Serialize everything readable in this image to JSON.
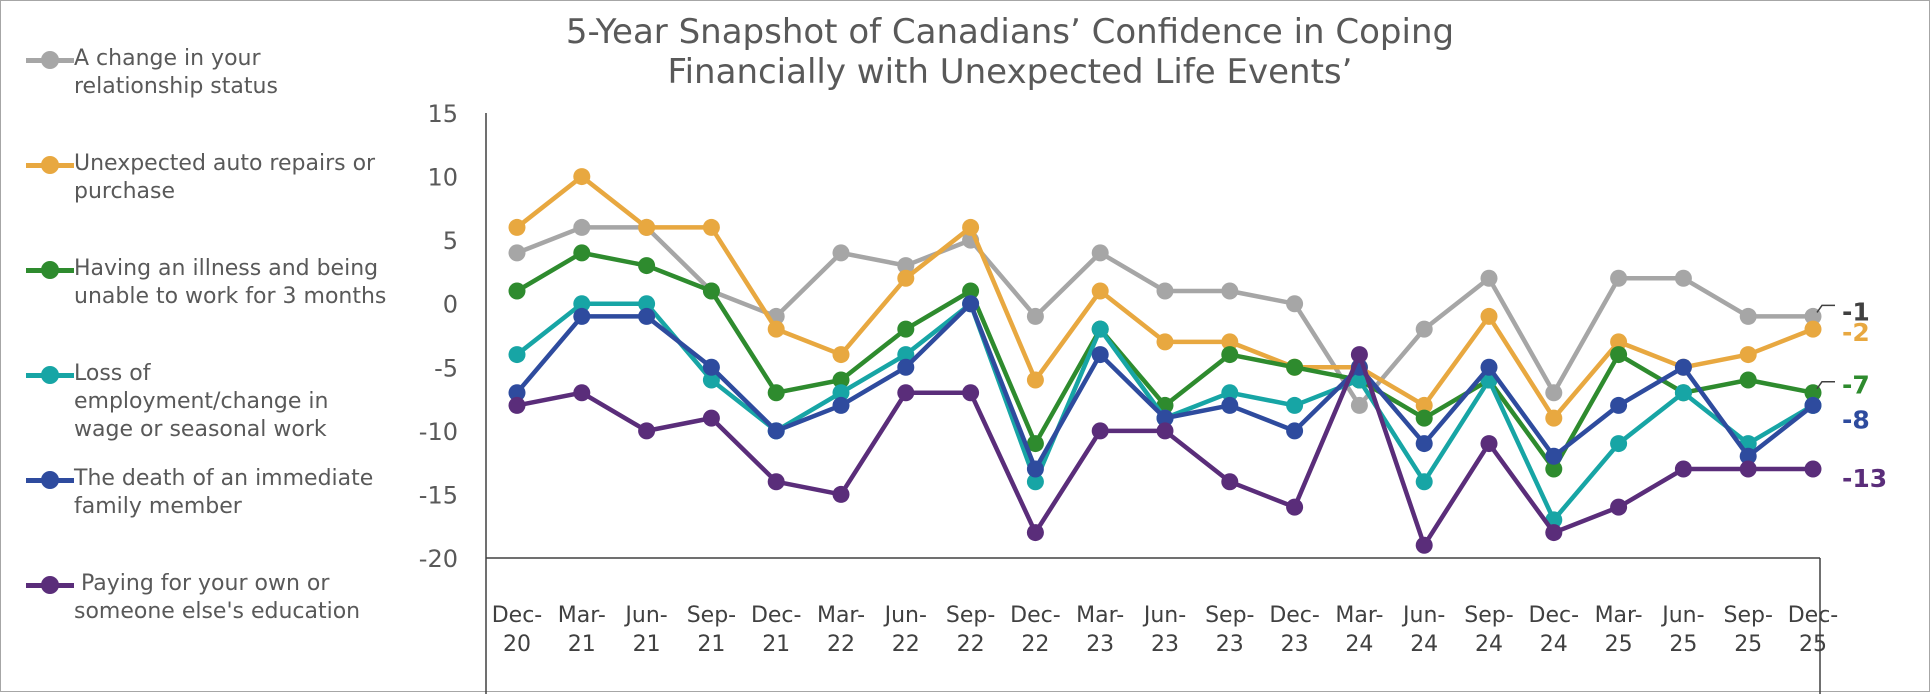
{
  "chart_data": {
    "type": "line",
    "title": "5-Year Snapshot of Canadians’ Confidence in Coping\nFinancially with Unexpected  Life Events’",
    "xlabel": "",
    "ylabel": "",
    "ylim": [
      -20,
      15
    ],
    "yticks": [
      "15",
      "10",
      "5",
      "0",
      "-5",
      "-10",
      "-15",
      "-20"
    ],
    "ytick_values": [
      15,
      10,
      5,
      0,
      -5,
      -10,
      -15,
      -20
    ],
    "grid": false,
    "legend_position": "left",
    "categories": [
      [
        "Dec-",
        "20"
      ],
      [
        "Mar-",
        "21"
      ],
      [
        "Jun-",
        "21"
      ],
      [
        "Sep-",
        "21"
      ],
      [
        "Dec-",
        "21"
      ],
      [
        "Mar-",
        "22"
      ],
      [
        "Jun-",
        "22"
      ],
      [
        "Sep-",
        "22"
      ],
      [
        "Dec-",
        "22"
      ],
      [
        "Mar-",
        "23"
      ],
      [
        "Jun-",
        "23"
      ],
      [
        "Sep-",
        "23"
      ],
      [
        "Dec-",
        "23"
      ],
      [
        "Mar-",
        "24"
      ],
      [
        "Jun-",
        "24"
      ],
      [
        "Sep-",
        "24"
      ],
      [
        "Dec-",
        "24"
      ],
      [
        "Mar-",
        "25"
      ],
      [
        "Jun-",
        "25"
      ],
      [
        "Sep-",
        "25"
      ],
      [
        "Dec-",
        "25"
      ]
    ],
    "series": [
      {
        "name": "A change in your relationship status",
        "legend_lines": [
          "A change in your",
          "relationship status"
        ],
        "color": "#a6a6a6",
        "values": [
          4,
          6,
          6,
          1,
          -1,
          4,
          3,
          5,
          -1,
          4,
          1,
          1,
          0,
          -8,
          -2,
          2,
          -7,
          2,
          2,
          -1,
          -1
        ],
        "end_label": "-1",
        "end_label_color": "#404040"
      },
      {
        "name": "Unexpected auto repairs or purchase",
        "legend_lines": [
          "Unexpected auto repairs or",
          "purchase"
        ],
        "color": "#e8a840",
        "values": [
          6,
          10,
          6,
          6,
          -2,
          -4,
          2,
          6,
          -6,
          1,
          -3,
          -3,
          -5,
          -5,
          -8,
          -1,
          -9,
          -3,
          -5,
          -4,
          -2
        ],
        "end_label": "-2",
        "end_label_color": "#e8a840"
      },
      {
        "name": "Having an illness and being unable to work for 3 months",
        "legend_lines": [
          "Having an illness and being",
          "unable to work for 3 months"
        ],
        "color": "#2e8b2e",
        "values": [
          1,
          4,
          3,
          1,
          -7,
          -6,
          -2,
          1,
          -11,
          -2,
          -8,
          -4,
          -5,
          -6,
          -9,
          -6,
          -13,
          -4,
          -7,
          -6,
          -7
        ],
        "end_label": "-7",
        "end_label_color": "#2e8b2e"
      },
      {
        "name": "Loss of employment/change in wage or seasonal work",
        "legend_lines": [
          "Loss of",
          "employment/change in",
          "wage or seasonal work"
        ],
        "color": "#17a5a5",
        "values": [
          -4,
          0,
          0,
          -6,
          -10,
          -7,
          -4,
          0,
          -14,
          -2,
          -9,
          -7,
          -8,
          -6,
          -14,
          -6,
          -17,
          -11,
          -7,
          -11,
          -8
        ],
        "end_label": "",
        "end_label_color": "#17a5a5"
      },
      {
        "name": "The death of an immediate family member",
        "legend_lines": [
          "The death of an immediate",
          "family member"
        ],
        "color": "#2e4b9e",
        "values": [
          -7,
          -1,
          -1,
          -5,
          -10,
          -8,
          -5,
          0,
          -13,
          -4,
          -9,
          -8,
          -10,
          -5,
          -11,
          -5,
          -12,
          -8,
          -5,
          -12,
          -8
        ],
        "end_label": "-8",
        "end_label_color": "#2e4b9e"
      },
      {
        "name": "Paying for your own or someone else's education",
        "legend_lines": [
          " Paying for your own or",
          "someone else's education"
        ],
        "color": "#5a2d7a",
        "values": [
          -8,
          -7,
          -10,
          -9,
          -14,
          -15,
          -7,
          -7,
          -18,
          -10,
          -10,
          -14,
          -16,
          -4,
          -19,
          -11,
          -18,
          -16,
          -13,
          -13,
          -13
        ],
        "end_label": "-13",
        "end_label_color": "#5a2d7a"
      }
    ]
  }
}
